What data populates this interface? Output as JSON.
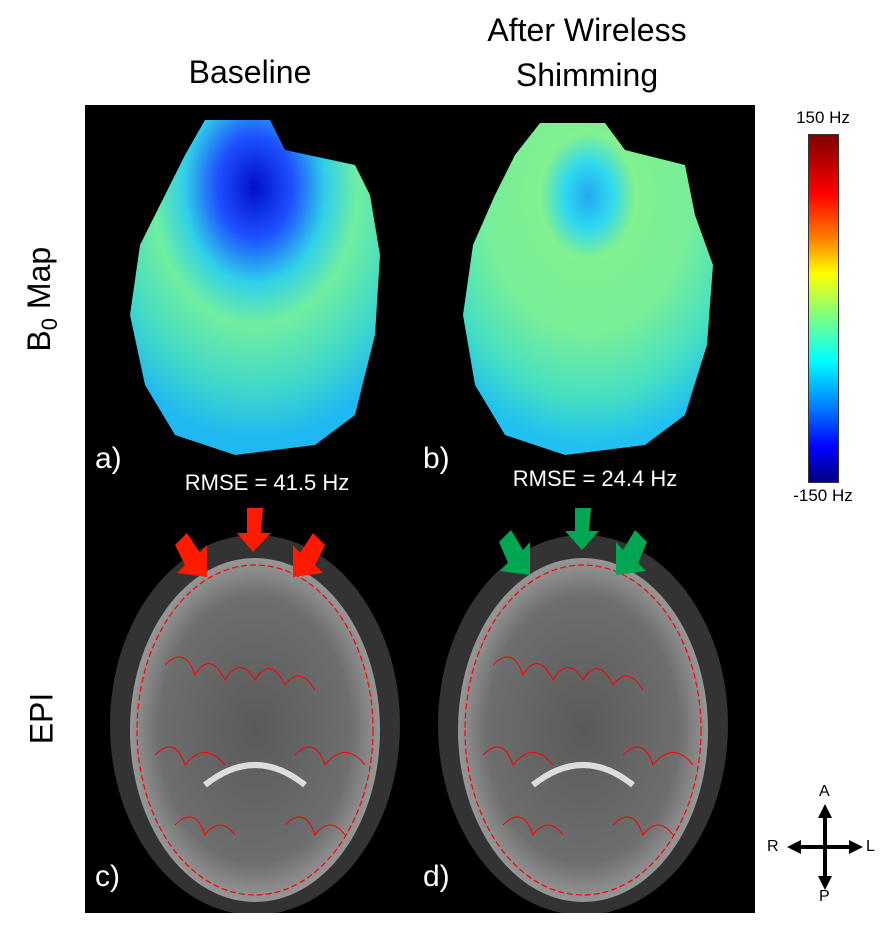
{
  "columns": {
    "baseline": "Baseline",
    "after_line1": "After Wireless",
    "after_line2": "Shimming"
  },
  "rows": {
    "b0_map_prefix": "B",
    "b0_map_sub": "0",
    "b0_map_suffix": " Map",
    "epi": "EPI"
  },
  "panels": {
    "a": "a)",
    "b": "b)",
    "c": "c)",
    "d": "d)"
  },
  "rmse": {
    "baseline": "RMSE = 41.5 Hz",
    "after": "RMSE = 24.4 Hz"
  },
  "colorbar": {
    "max_label": "150 Hz",
    "min_label": "-150 Hz",
    "colormap": "jet",
    "range_hz": [
      -150,
      150
    ]
  },
  "orientation": {
    "anterior": "A",
    "posterior": "P",
    "right": "R",
    "left": "L"
  },
  "colors": {
    "baseline_arrows": "#ff1a00",
    "after_arrows": "#00a651",
    "contour": "#ff0000"
  }
}
